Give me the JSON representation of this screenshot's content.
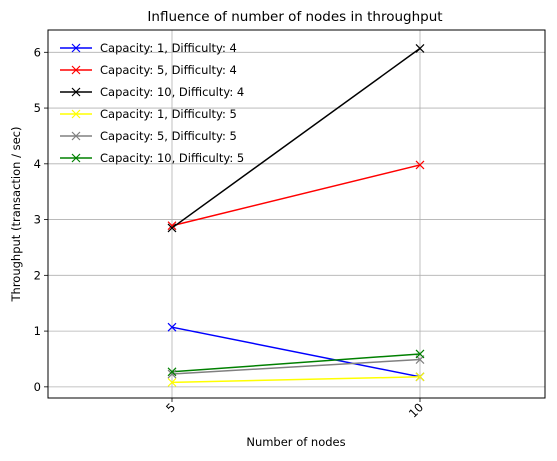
{
  "chart_data": {
    "type": "line",
    "title": "Influence of number of nodes in throughput",
    "xlabel": "Number of nodes",
    "ylabel": "Throughput (transaction / sec)",
    "categories": [
      "5",
      "10"
    ],
    "ylim": [
      -0.2,
      6.4
    ],
    "yticks": [
      0,
      1,
      2,
      3,
      4,
      5,
      6
    ],
    "grid": true,
    "legend_placement": "top-left",
    "marker": "x",
    "series": [
      {
        "name": "Capacity: 1, Difficulty: 4",
        "color": "#0000ff",
        "values": [
          1.07,
          0.18
        ]
      },
      {
        "name": "Capacity: 5, Difficulty: 4",
        "color": "#ff0000",
        "values": [
          2.89,
          3.98
        ]
      },
      {
        "name": "Capacity: 10, Difficulty: 4",
        "color": "#000000",
        "values": [
          2.85,
          6.07
        ]
      },
      {
        "name": "Capacity: 1, Difficulty: 5",
        "color": "#ffff00",
        "values": [
          0.08,
          0.18
        ]
      },
      {
        "name": "Capacity: 5, Difficulty: 5",
        "color": "#808080",
        "values": [
          0.23,
          0.49
        ]
      },
      {
        "name": "Capacity: 10, Difficulty: 5",
        "color": "#008000",
        "values": [
          0.27,
          0.59
        ]
      }
    ]
  }
}
